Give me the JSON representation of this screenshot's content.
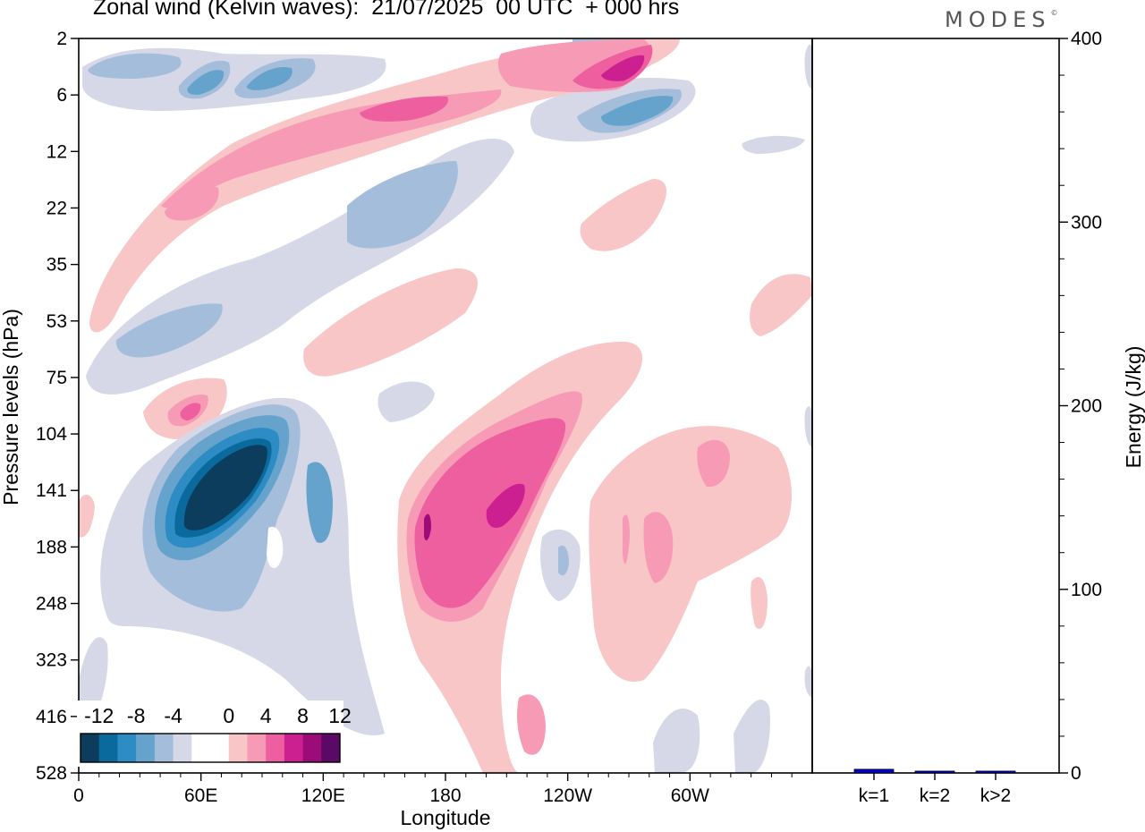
{
  "title": "Zonal wind (Kelvin waves):  21/07/2025  00 UTC  + 000 hrs",
  "brand": "MODES",
  "brand_mark": "©",
  "chart_data": [
    {
      "type": "heatmap",
      "title": "Zonal wind (Kelvin waves):  21/07/2025  00 UTC  + 000 hrs",
      "xlabel": "Longitude",
      "ylabel": "Pressure levels (hPa)",
      "x_ticks": [
        "0",
        "60E",
        "120E",
        "180",
        "120W",
        "60W"
      ],
      "x_tick_values": [
        0,
        60,
        120,
        180,
        240,
        300
      ],
      "xlim": [
        0,
        360
      ],
      "y_ticks": [
        "2",
        "6",
        "12",
        "22",
        "35",
        "53",
        "75",
        "104",
        "141",
        "188",
        "248",
        "323",
        "416",
        "528"
      ],
      "colorbar": {
        "labels": [
          "-12",
          "-8",
          "-4",
          "0",
          "4",
          "8",
          "12"
        ],
        "colors": [
          "#0d3d5c",
          "#0a6a9e",
          "#2e8cc4",
          "#66a3cc",
          "#a3bddb",
          "#d6d8e8",
          "#ffffff",
          "#ffffff",
          "#f8c6c6",
          "#f79ab6",
          "#ee5fa0",
          "#cc2090",
          "#9c0c78",
          "#5a0a66"
        ]
      },
      "features": [
        {
          "label": "negative",
          "intensity": 6,
          "lon": 48,
          "lev": 9.0
        },
        {
          "label": "positive",
          "intensity": 4,
          "lon": 180,
          "lev": 9.5
        },
        {
          "label": "positive",
          "intensity": 3,
          "lon": 276,
          "lev": 1.0
        }
      ]
    },
    {
      "type": "bar",
      "categories": [
        "k=1",
        "k=2",
        "k>2"
      ],
      "values": [
        2,
        1,
        1
      ],
      "ylabel": "Energy (J/kg)",
      "ylim": [
        0,
        400
      ],
      "y_ticks": [
        "0",
        "100",
        "200",
        "300",
        "400"
      ],
      "bar_color": "#0000cc"
    }
  ]
}
